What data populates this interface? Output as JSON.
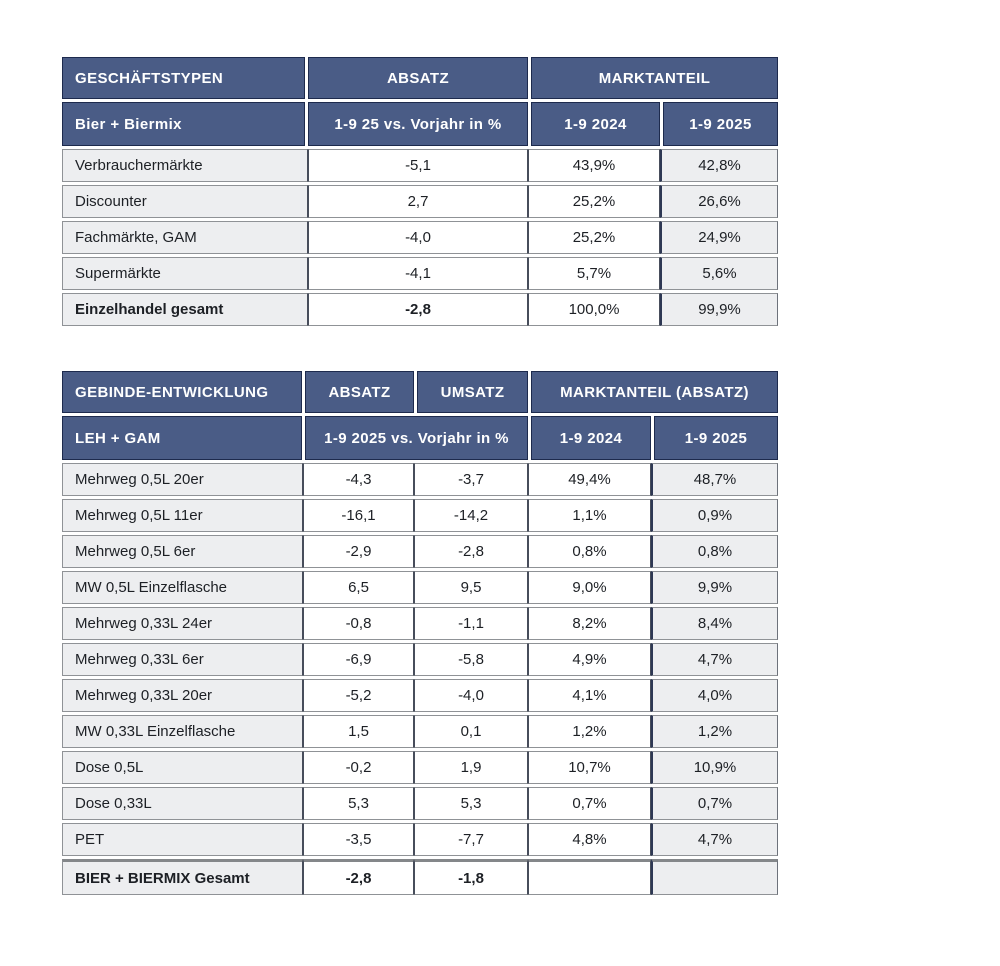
{
  "colors": {
    "header_blue": "#4a5c86",
    "header_border": "#1d2a4d",
    "header_text": "#ffffff",
    "body_border_gray": "#8f9296",
    "divider_dark": "#474d5b",
    "highlight_divider": "#2e3854",
    "cell_gray": "#edeef0",
    "text_dark": "#1d2025",
    "total_rule": "#84878a"
  },
  "table1": {
    "header_row1": [
      "GESCHÄFTSTYPEN",
      "ABSATZ",
      "MARKTANTEIL"
    ],
    "header_row2": [
      "Bier + Biermix",
      "1-9 25 vs. Vorjahr in %",
      "1-9 2024",
      "1-9 2025"
    ],
    "rows": [
      {
        "label": "Verbrauchermärkte",
        "absatz": "-5,1",
        "ma2024": "43,9%",
        "ma2025": "42,8%"
      },
      {
        "label": "Discounter",
        "absatz": "2,7",
        "ma2024": "25,2%",
        "ma2025": "26,6%"
      },
      {
        "label": "Fachmärkte, GAM",
        "absatz": "-4,0",
        "ma2024": "25,2%",
        "ma2025": "24,9%"
      },
      {
        "label": "Supermärkte",
        "absatz": "-4,1",
        "ma2024": "5,7%",
        "ma2025": "5,6%"
      },
      {
        "label": "Einzelhandel gesamt",
        "absatz": "-2,8",
        "ma2024": "100,0%",
        "ma2025": "99,9%"
      }
    ]
  },
  "table2": {
    "header_row1": [
      "GEBINDE-ENTWICKLUNG",
      "ABSATZ",
      "UMSATZ",
      "MARKTANTEIL (ABSATZ)"
    ],
    "header_row2": [
      "LEH + GAM",
      "1-9 2025 vs. Vorjahr in %",
      "1-9 2024",
      "1-9 2025"
    ],
    "rows": [
      {
        "label": "Mehrweg 0,5L 20er",
        "absatz": "-4,3",
        "umsatz": "-3,7",
        "ma2024": "49,4%",
        "ma2025": "48,7%"
      },
      {
        "label": "Mehrweg 0,5L 11er",
        "absatz": "-16,1",
        "umsatz": "-14,2",
        "ma2024": "1,1%",
        "ma2025": "0,9%"
      },
      {
        "label": "Mehrweg 0,5L 6er",
        "absatz": "-2,9",
        "umsatz": "-2,8",
        "ma2024": "0,8%",
        "ma2025": "0,8%"
      },
      {
        "label": "MW 0,5L Einzelflasche",
        "absatz": "6,5",
        "umsatz": "9,5",
        "ma2024": "9,0%",
        "ma2025": "9,9%"
      },
      {
        "label": "Mehrweg 0,33L 24er",
        "absatz": "-0,8",
        "umsatz": "-1,1",
        "ma2024": "8,2%",
        "ma2025": "8,4%"
      },
      {
        "label": "Mehrweg 0,33L 6er",
        "absatz": "-6,9",
        "umsatz": "-5,8",
        "ma2024": "4,9%",
        "ma2025": "4,7%"
      },
      {
        "label": "Mehrweg 0,33L 20er",
        "absatz": "-5,2",
        "umsatz": "-4,0",
        "ma2024": "4,1%",
        "ma2025": "4,0%"
      },
      {
        "label": "MW 0,33L Einzelflasche",
        "absatz": "1,5",
        "umsatz": "0,1",
        "ma2024": "1,2%",
        "ma2025": "1,2%"
      },
      {
        "label": "Dose 0,5L",
        "absatz": "-0,2",
        "umsatz": "1,9",
        "ma2024": "10,7%",
        "ma2025": "10,9%"
      },
      {
        "label": "Dose 0,33L",
        "absatz": "5,3",
        "umsatz": "5,3",
        "ma2024": "0,7%",
        "ma2025": "0,7%"
      },
      {
        "label": "PET",
        "absatz": "-3,5",
        "umsatz": "-7,7",
        "ma2024": "4,8%",
        "ma2025": "4,7%"
      },
      {
        "label": "BIER + BIERMIX Gesamt",
        "absatz": "-2,8",
        "umsatz": "-1,8",
        "ma2024": "",
        "ma2025": ""
      }
    ]
  }
}
